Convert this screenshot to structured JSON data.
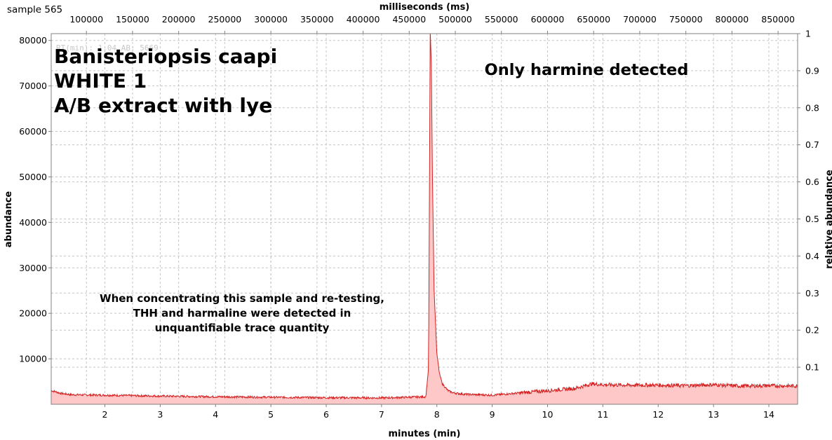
{
  "window_title": "sample 565",
  "ghost_readout": "RT(min): 1.04 AB: 5669",
  "chart_data": {
    "type": "area",
    "xlabel": "minutes (min)",
    "x2label": "milliseconds (ms)",
    "ylabel": "abundance",
    "y2label": "relative abundance",
    "xlim": [
      1.03,
      14.52
    ],
    "ylim": [
      0,
      81500
    ],
    "x_ticks": [
      2,
      3,
      4,
      5,
      6,
      7,
      8,
      9,
      10,
      11,
      12,
      13,
      14
    ],
    "x2_ticks": [
      100000,
      150000,
      200000,
      250000,
      300000,
      350000,
      400000,
      450000,
      500000,
      550000,
      600000,
      650000,
      700000,
      750000,
      800000,
      850000
    ],
    "y_ticks": [
      10000,
      20000,
      30000,
      40000,
      50000,
      60000,
      70000,
      80000
    ],
    "y2_ticks": [
      0.1,
      0.2,
      0.3,
      0.4,
      0.5,
      0.6,
      0.7,
      0.8,
      0.9,
      1
    ],
    "grid": true,
    "line_color": "#d62020",
    "fill_color": "#ffc8c8",
    "series": [
      {
        "x": [
          1.03,
          1.1,
          1.2,
          1.4,
          2.0,
          3.0,
          4.0,
          5.0,
          6.0,
          7.0,
          7.8,
          7.85,
          7.88,
          7.9,
          7.92,
          7.95,
          8.0,
          8.05,
          8.1,
          8.2,
          8.3,
          8.5,
          9.0,
          9.5,
          10.0,
          10.5,
          10.8,
          11.0,
          11.5,
          12.0,
          12.5,
          13.0,
          13.5,
          14.0,
          14.52
        ],
        "y": [
          3000,
          2800,
          2400,
          2100,
          2000,
          1800,
          1650,
          1550,
          1450,
          1400,
          1650,
          8000,
          82000,
          75000,
          50000,
          25000,
          11000,
          6500,
          4500,
          3000,
          2500,
          2200,
          2000,
          2500,
          3000,
          3500,
          4500,
          4300,
          4200,
          4200,
          4100,
          4300,
          4000,
          4100,
          4000
        ]
      }
    ],
    "annotations": [
      {
        "id": "species",
        "text": "Banisteriopsis caapi"
      },
      {
        "id": "code",
        "text": "WHITE 1"
      },
      {
        "id": "method",
        "text": "A/B extract with lye"
      },
      {
        "id": "result",
        "text": "Only harmine detected"
      },
      {
        "id": "note1",
        "text": "When concentrating this sample and re-testing,"
      },
      {
        "id": "note2",
        "text": "THH and harmaline were detected in"
      },
      {
        "id": "note3",
        "text": "unquantifiable trace quantity"
      }
    ]
  }
}
